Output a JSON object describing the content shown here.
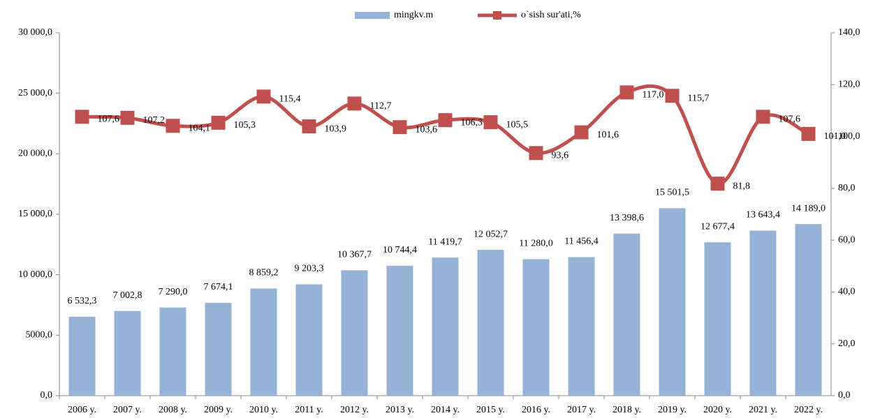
{
  "chart_data": {
    "type": "bar",
    "categories": [
      "2006 y.",
      "2007 y.",
      "2008 y.",
      "2009 y.",
      "2010 y.",
      "2011 y.",
      "2012 y.",
      "2013 y.",
      "2014 y.",
      "2015 y.",
      "2016 y.",
      "2017 y.",
      "2018 y.",
      "2019 y.",
      "2020 y.",
      "2021 y.",
      "2022 y."
    ],
    "series": [
      {
        "name": "mingkv.m",
        "type": "bar",
        "color": "#95b3d7",
        "axis": "y",
        "values": [
          6532.3,
          7002.8,
          7290.0,
          7674.1,
          8859.2,
          9203.3,
          10367.7,
          10744.4,
          11419.7,
          12052.7,
          11280.0,
          11456.4,
          13398.6,
          15501.5,
          12677.4,
          13643.4,
          14189.0
        ],
        "value_labels": [
          "6 532,3",
          "7 002,8",
          "7 290,0",
          "7 674,1",
          "8 859,2",
          "9 203,3",
          "10 367,7",
          "10 744,4",
          "11 419,7",
          "12 052,7",
          "11 280,0",
          "11 456,4",
          "13 398,6",
          "15 501,5",
          "12 677,4",
          "13 643,4",
          "14 189,0"
        ]
      },
      {
        "name": "o`sish sur'ati,%",
        "type": "line",
        "color": "#c0504d",
        "axis": "y2",
        "values": [
          107.6,
          107.2,
          104.1,
          105.3,
          115.4,
          103.9,
          112.7,
          103.6,
          106.3,
          105.5,
          93.6,
          101.6,
          117.0,
          115.7,
          81.8,
          107.6,
          101.0
        ],
        "value_labels": [
          "107,6",
          "107,2",
          "104,1",
          "105,3",
          "115,4",
          "103,9",
          "112,7",
          "103,6",
          "106,3",
          "105,5",
          "93,6",
          "101,6",
          "117,0",
          "115,7",
          "81,8",
          "107,6",
          "101,0"
        ]
      }
    ],
    "ylim": [
      0,
      30000
    ],
    "yticks": [
      {
        "value": 0,
        "label": "0,0"
      },
      {
        "value": 5000,
        "label": "5000,0"
      },
      {
        "value": 10000,
        "label": "10 000,0"
      },
      {
        "value": 15000,
        "label": "15 000,0"
      },
      {
        "value": 20000,
        "label": "20 000,0"
      },
      {
        "value": 25000,
        "label": "25 000,0"
      },
      {
        "value": 30000,
        "label": "30 000,0"
      }
    ],
    "y2lim": [
      0,
      140
    ],
    "y2ticks": [
      {
        "value": 0,
        "label": "0,0"
      },
      {
        "value": 20,
        "label": "20,0"
      },
      {
        "value": 40,
        "label": "40,0"
      },
      {
        "value": 60,
        "label": "60,0"
      },
      {
        "value": 80,
        "label": "80,0"
      },
      {
        "value": 100,
        "label": "100,0"
      },
      {
        "value": 120,
        "label": "120,0"
      },
      {
        "value": 140,
        "label": "140,0"
      }
    ],
    "legend": "top",
    "grid": false
  }
}
